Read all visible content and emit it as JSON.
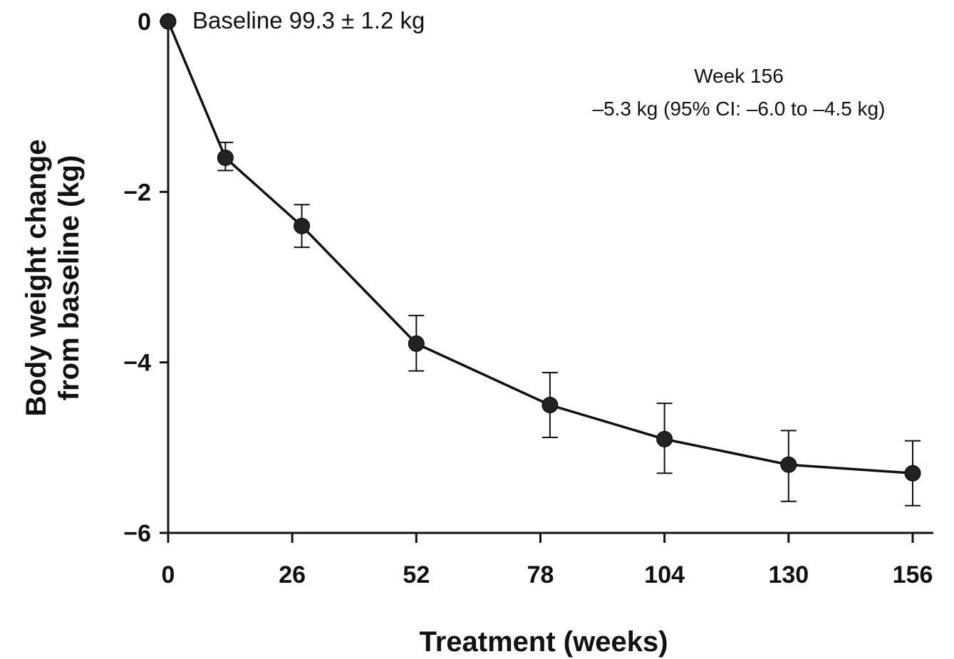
{
  "chart_data": {
    "type": "line",
    "xlabel": "Treatment (weeks)",
    "ylabel_lines": [
      "Body weight change",
      "from baseline (kg)"
    ],
    "xlim": [
      0,
      156
    ],
    "ylim": [
      -6,
      0
    ],
    "x_ticks": [
      0,
      26,
      52,
      78,
      104,
      130,
      156
    ],
    "y_ticks": [
      0,
      -2,
      -4,
      -6
    ],
    "x_tick_labels": [
      "0",
      "26",
      "52",
      "78",
      "104",
      "130",
      "156"
    ],
    "y_tick_labels": [
      "0",
      "−2",
      "−4",
      "−6"
    ],
    "grid": false,
    "series": [
      {
        "points": [
          {
            "x": 0,
            "y": 0.0,
            "err_low": 0.0,
            "err_high": 0.0
          },
          {
            "x": 12,
            "y": -1.6,
            "err_low": -1.75,
            "err_high": -1.42
          },
          {
            "x": 28,
            "y": -2.4,
            "err_low": -2.65,
            "err_high": -2.15
          },
          {
            "x": 52,
            "y": -3.78,
            "err_low": -4.1,
            "err_high": -3.45
          },
          {
            "x": 80,
            "y": -4.5,
            "err_low": -4.88,
            "err_high": -4.12
          },
          {
            "x": 104,
            "y": -4.9,
            "err_low": -5.3,
            "err_high": -4.48
          },
          {
            "x": 130,
            "y": -5.2,
            "err_low": -5.63,
            "err_high": -4.8
          },
          {
            "x": 156,
            "y": -5.3,
            "err_low": -5.68,
            "err_high": -4.92
          }
        ]
      }
    ],
    "annotations": {
      "baseline": "Baseline 99.3 ± 1.2 kg",
      "week156_line1": "Week 156",
      "week156_line2": "–5.3 kg (95% CI: –6.0 to –4.5 kg)"
    },
    "colors": {
      "line": "#111111",
      "marker": "#222222"
    }
  }
}
